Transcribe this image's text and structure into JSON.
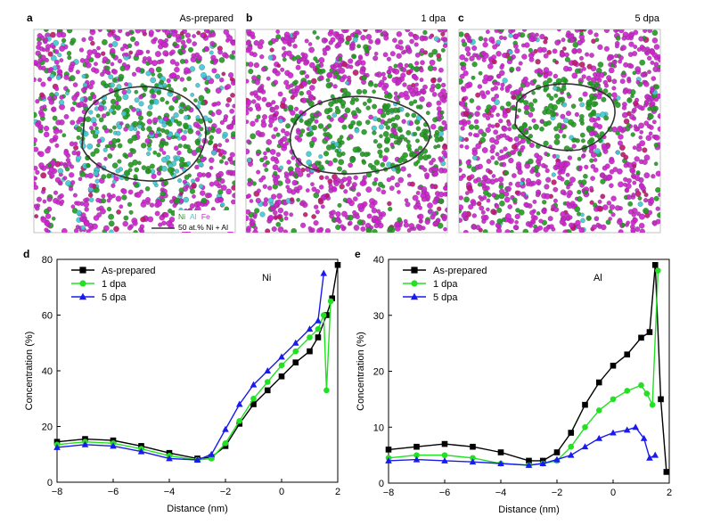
{
  "panel_a": {
    "letter": "a",
    "title": "As-prepared",
    "legend_ni": "Ni",
    "legend_al": "Al",
    "legend_fe": "Fe",
    "iso_label": "50 at.% Ni + Al"
  },
  "panel_b": {
    "letter": "b",
    "title": "1 dpa"
  },
  "panel_c": {
    "letter": "c",
    "title": "5 dpa"
  },
  "colors": {
    "ni": "#1f9a1f",
    "al": "#3fc8d2",
    "fe": "#cc22cc",
    "fe_dark": "#c0156a",
    "black": "#000000",
    "green": "#22e022",
    "blue": "#1a1aee"
  },
  "chart_data": [
    {
      "id": "d",
      "letter": "d",
      "type": "line",
      "element_label": "Ni",
      "xlabel": "Distance (nm)",
      "ylabel": "Concentration (%)",
      "xlim": [
        -8,
        2
      ],
      "ylim": [
        0,
        80
      ],
      "xticks": [
        -8,
        -6,
        -4,
        -2,
        0,
        2
      ],
      "yticks": [
        0,
        20,
        40,
        60,
        80
      ],
      "xtick_labels": [
        "−8",
        "−6",
        "−4",
        "−2",
        "0",
        "2"
      ],
      "ytick_labels": [
        "0",
        "20",
        "40",
        "60",
        "80"
      ],
      "legend": [
        "As-prepared",
        "1 dpa",
        "5 dpa"
      ],
      "series": [
        {
          "name": "As-prepared",
          "marker": "square",
          "color": "#000000",
          "x": [
            -8,
            -7,
            -6,
            -5,
            -4,
            -3,
            -2.5,
            -2,
            -1.5,
            -1,
            -0.5,
            0,
            0.5,
            1,
            1.3,
            1.6,
            1.8,
            2
          ],
          "y": [
            14.5,
            15.5,
            15,
            13,
            10.5,
            8.5,
            9,
            13,
            21,
            28,
            33,
            38,
            43,
            47,
            52,
            60,
            66,
            78
          ]
        },
        {
          "name": "1 dpa",
          "marker": "circle",
          "color": "#22e022",
          "x": [
            -8,
            -7,
            -6,
            -5,
            -4,
            -3,
            -2.5,
            -2,
            -1.5,
            -1,
            -0.5,
            0,
            0.5,
            1,
            1.3,
            1.5,
            1.6,
            1.75
          ],
          "y": [
            13.5,
            14.5,
            14,
            12,
            9.5,
            8,
            8.5,
            14,
            22,
            30,
            36,
            42,
            47,
            52,
            55,
            60,
            33,
            65
          ]
        },
        {
          "name": "5 dpa",
          "marker": "triangle",
          "color": "#1a1aee",
          "x": [
            -8,
            -7,
            -6,
            -5,
            -4,
            -3,
            -2.5,
            -2,
            -1.5,
            -1,
            -0.5,
            0,
            0.5,
            1,
            1.3,
            1.5
          ],
          "y": [
            12.5,
            13.5,
            13,
            11,
            8.5,
            8,
            10,
            19,
            28,
            35,
            40,
            45,
            50,
            55,
            58,
            75
          ]
        }
      ]
    },
    {
      "id": "e",
      "letter": "e",
      "type": "line",
      "element_label": "Al",
      "xlabel": "Distance (nm)",
      "ylabel": "Concentration (%)",
      "xlim": [
        -8,
        2
      ],
      "ylim": [
        0,
        40
      ],
      "xticks": [
        -8,
        -6,
        -4,
        -2,
        0,
        2
      ],
      "yticks": [
        0,
        10,
        20,
        30,
        40
      ],
      "xtick_labels": [
        "−8",
        "−6",
        "−4",
        "−2",
        "0",
        "2"
      ],
      "ytick_labels": [
        "0",
        "10",
        "20",
        "30",
        "40"
      ],
      "legend": [
        "As-prepared",
        "1 dpa",
        "5 dpa"
      ],
      "series": [
        {
          "name": "As-prepared",
          "marker": "square",
          "color": "#000000",
          "x": [
            -8,
            -7,
            -6,
            -5,
            -4,
            -3,
            -2.5,
            -2,
            -1.5,
            -1,
            -0.5,
            0,
            0.5,
            1,
            1.3,
            1.5,
            1.7,
            1.9
          ],
          "y": [
            6,
            6.5,
            7,
            6.5,
            5.5,
            4,
            4,
            5.5,
            9,
            14,
            18,
            21,
            23,
            26,
            27,
            39,
            15,
            2
          ]
        },
        {
          "name": "1 dpa",
          "marker": "circle",
          "color": "#22e022",
          "x": [
            -8,
            -7,
            -6,
            -5,
            -4,
            -3,
            -2.5,
            -2,
            -1.5,
            -1,
            -0.5,
            0,
            0.5,
            1,
            1.2,
            1.4,
            1.6
          ],
          "y": [
            4.5,
            5,
            5,
            4.5,
            3.5,
            3.2,
            3.5,
            4,
            6.5,
            10,
            13,
            15,
            16.5,
            17.5,
            16,
            14,
            38
          ]
        },
        {
          "name": "5 dpa",
          "marker": "triangle",
          "color": "#1a1aee",
          "x": [
            -8,
            -7,
            -6,
            -5,
            -4,
            -3,
            -2.5,
            -2,
            -1.5,
            -1,
            -0.5,
            0,
            0.5,
            0.8,
            1.1,
            1.3,
            1.5
          ],
          "y": [
            4,
            4.2,
            4,
            3.8,
            3.5,
            3.2,
            3.5,
            4.2,
            5,
            6.5,
            8,
            9,
            9.5,
            10,
            8,
            4.5,
            5
          ]
        }
      ]
    }
  ]
}
